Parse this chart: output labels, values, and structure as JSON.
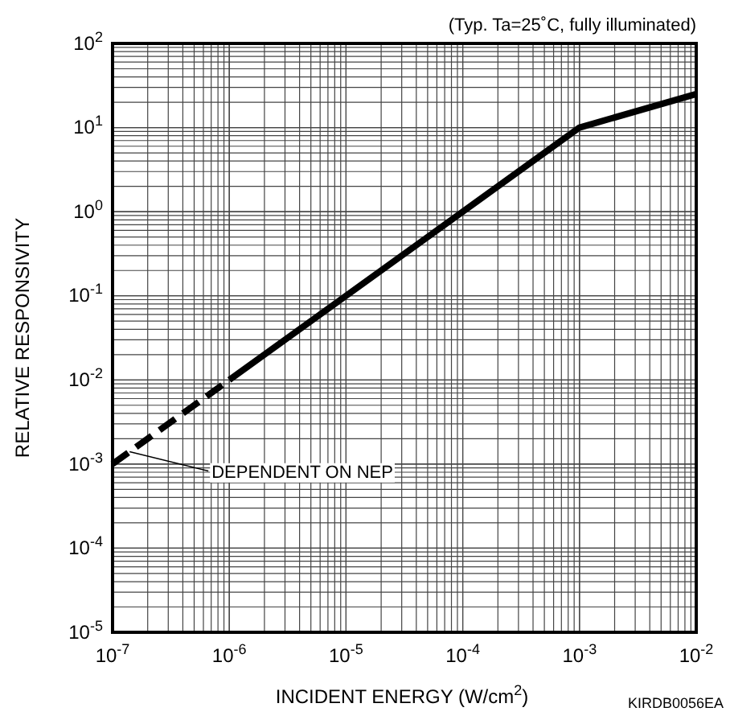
{
  "chart_data": {
    "type": "line",
    "xlabel": "INCIDENT ENERGY (W/cm$^{2}$)",
    "ylabel": "RELATIVE RESPONSIVITY",
    "log": "xy",
    "grid": true,
    "marker": "none",
    "xlim": [
      1e-07,
      0.01
    ],
    "ylim": [
      1e-05,
      100
    ],
    "xticks": [
      {
        "value": 1e-07,
        "label": "10$^{-7}$"
      },
      {
        "value": 1e-06,
        "label": "10$^{-6}$"
      },
      {
        "value": 1e-05,
        "label": "10$^{-5}$"
      },
      {
        "value": 0.0001,
        "label": "10$^{-4}$"
      },
      {
        "value": 0.001,
        "label": "10$^{-3}$"
      },
      {
        "value": 0.01,
        "label": "10$^{-2}$"
      }
    ],
    "yticks": [
      {
        "value": 1e-05,
        "label": "10$^{-5}$"
      },
      {
        "value": 0.0001,
        "label": "10$^{-4}$"
      },
      {
        "value": 0.001,
        "label": "10$^{-3}$"
      },
      {
        "value": 0.01,
        "label": "10$^{-2}$"
      },
      {
        "value": 0.1,
        "label": "10$^{-1}$"
      },
      {
        "value": 1,
        "label": "10$^{0}$"
      },
      {
        "value": 10,
        "label": "10$^{1}$"
      },
      {
        "value": 100,
        "label": "10$^{2}$"
      }
    ],
    "series": [
      {
        "color": "#000000",
        "line_style": "solid",
        "x": [
          1e-06,
          0.001,
          0.01
        ],
        "values": [
          0.01,
          10,
          25
        ]
      },
      {
        "color": "#000000",
        "line_style": "dashed",
        "x": [
          1e-07,
          1e-06
        ],
        "values": [
          0.001,
          0.01
        ]
      }
    ],
    "annotations": [
      "(Typ. Ta=25˚C, fully illuminated)",
      {
        "text": "DEPENDENT ON NEP",
        "x": 1.4e-07,
        "y": 0.0014
      },
      "KIRDB0056EA"
    ]
  }
}
